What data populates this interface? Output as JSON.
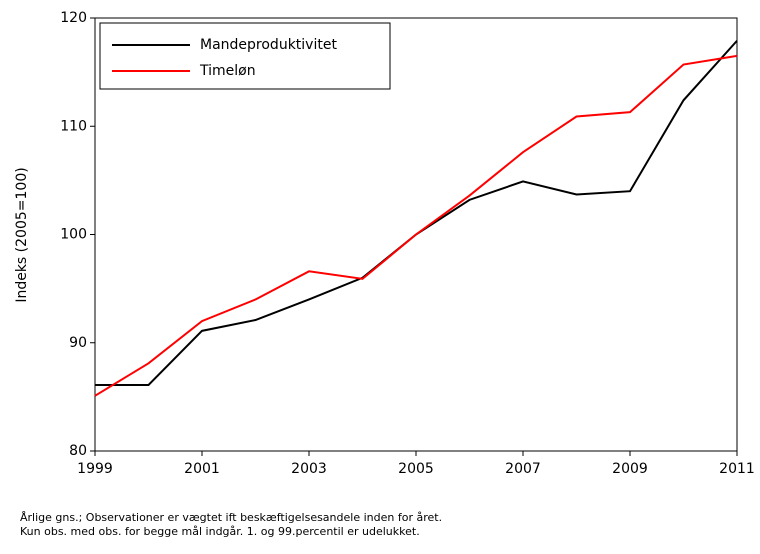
{
  "chart_data": {
    "type": "line",
    "ylabel": "Indeks (2005=100)",
    "x": [
      1999,
      2000,
      2001,
      2002,
      2003,
      2004,
      2005,
      2006,
      2007,
      2008,
      2009,
      2010,
      2011
    ],
    "series": [
      {
        "name": "Mandeproduktivitet",
        "color": "#000000",
        "values": [
          86.1,
          86.1,
          91.1,
          92.1,
          94.0,
          96.0,
          100,
          103.2,
          104.9,
          103.7,
          104.0,
          112.4,
          117.9
        ]
      },
      {
        "name": "Timeløn",
        "color": "#ff0000",
        "values": [
          85.1,
          88.1,
          92.0,
          94.0,
          96.6,
          95.9,
          100,
          103.6,
          107.6,
          110.9,
          111.3,
          115.7,
          116.5
        ]
      }
    ],
    "xlim": [
      1999,
      2011
    ],
    "xticks": [
      1999,
      2001,
      2003,
      2005,
      2007,
      2009,
      2011
    ],
    "ylim": [
      80,
      120
    ],
    "yticks": [
      80,
      90,
      100,
      110,
      120
    ],
    "legend": "upper-left",
    "notes": [
      "Årlige gns.; Observationer er vægtet ift beskæftigelsesandele inden for året.",
      "Kun obs. med obs. for begge mål indgår. 1. og 99.percentil er udelukket."
    ]
  }
}
